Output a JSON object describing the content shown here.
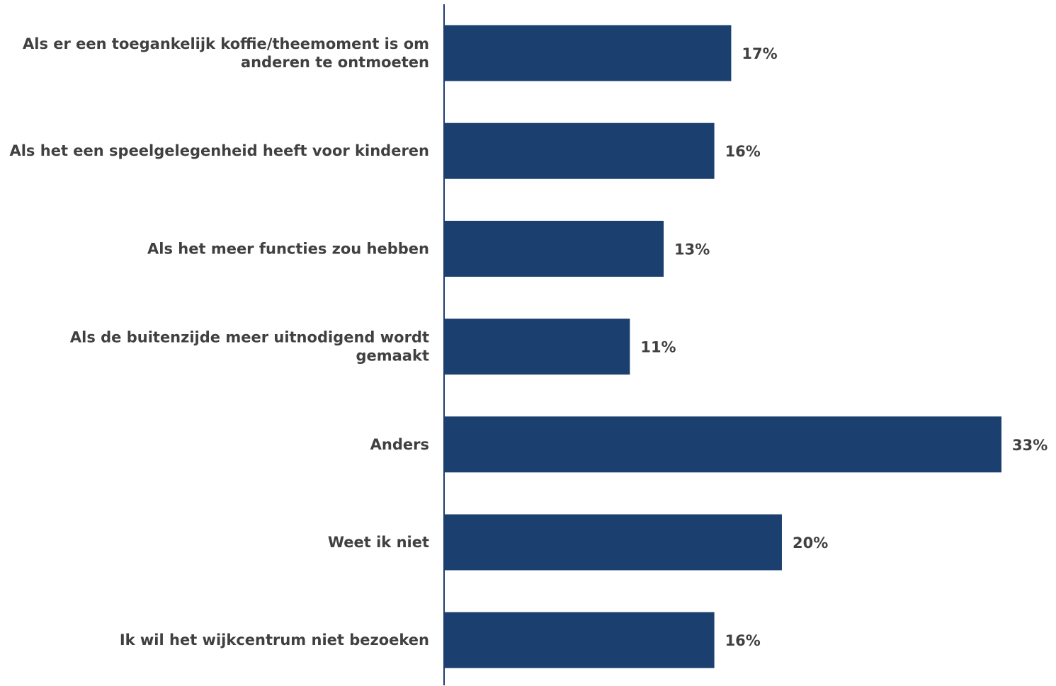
{
  "chart_data": {
    "type": "bar",
    "orientation": "horizontal",
    "categories": [
      [
        "Als er een toegankelijk koffie/theemoment is om",
        "anderen te ontmoeten"
      ],
      [
        "Als het een speelgelegenheid heeft voor kinderen"
      ],
      [
        "Als het meer functies zou hebben"
      ],
      [
        "Als de buitenzijde meer uitnodigend wordt",
        "gemaakt"
      ],
      [
        "Anders"
      ],
      [
        "Weet ik niet"
      ],
      [
        "Ik wil het wijkcentrum niet bezoeken"
      ]
    ],
    "values": [
      17,
      16,
      13,
      11,
      33,
      20,
      16
    ],
    "value_labels": [
      "17%",
      "16%",
      "13%",
      "11%",
      "33%",
      "20%",
      "16%"
    ],
    "xlim": [
      0,
      35
    ],
    "grid": false,
    "bar_color": "#1b3f6f",
    "axis_color": "#1b3f6f",
    "text_color": "#404040"
  }
}
